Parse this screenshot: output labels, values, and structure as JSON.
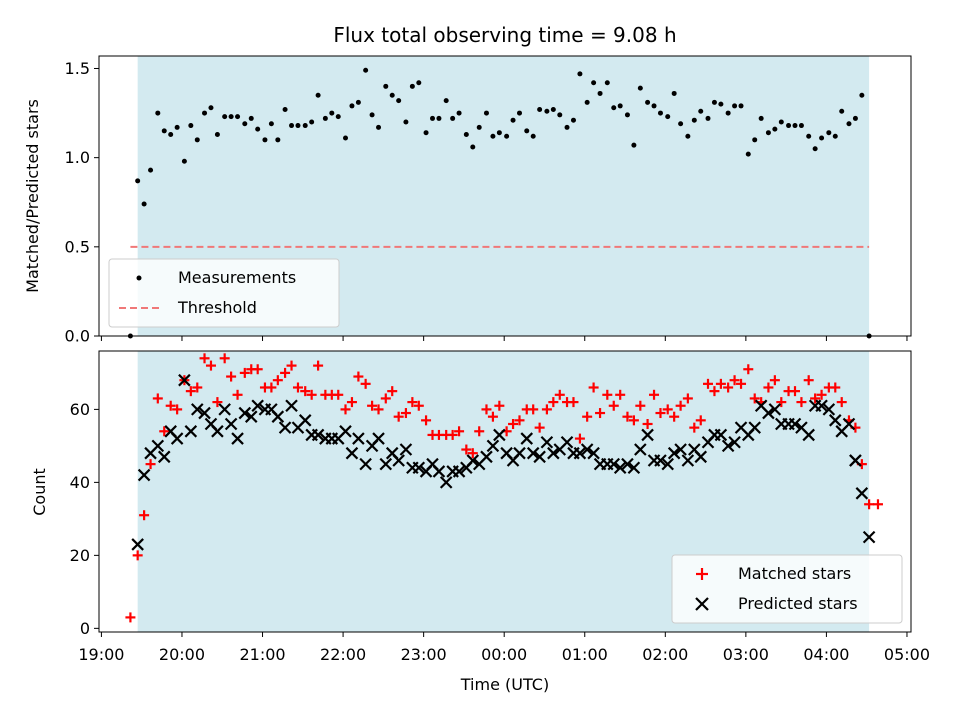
{
  "chart_data": {
    "title": "Flux total observing time = 9.08 h",
    "xlabel": "Time (UTC)",
    "x_tick_labels": [
      "19:00",
      "20:00",
      "21:00",
      "22:00",
      "23:00",
      "00:00",
      "01:00",
      "02:00",
      "03:00",
      "04:00",
      "05:00"
    ],
    "x_range_hours": [
      18.97,
      29.05
    ],
    "observing_window_hours": [
      19.45,
      28.53
    ],
    "shade_color": "#d3eaf0",
    "panels": [
      {
        "type": "scatter",
        "ylabel": "Matched/Predicted stars",
        "ylim": [
          0,
          1.57
        ],
        "y_ticks": [
          0.0,
          0.5,
          1.0,
          1.5
        ],
        "y_tick_labels": [
          "0.0",
          "0.5",
          "1.0",
          "1.5"
        ],
        "legend_position": "lower-left",
        "series": [
          {
            "name": "Measurements",
            "color": "#000000",
            "marker": "dot",
            "points": [
              [
                19.36,
                0.0
              ],
              [
                19.45,
                0.87
              ],
              [
                19.53,
                0.74
              ],
              [
                19.61,
                0.93
              ],
              [
                19.7,
                1.25
              ],
              [
                19.78,
                1.15
              ],
              [
                19.86,
                1.13
              ],
              [
                19.94,
                1.17
              ],
              [
                20.03,
                0.98
              ],
              [
                20.11,
                1.18
              ],
              [
                20.19,
                1.1
              ],
              [
                20.28,
                1.25
              ],
              [
                20.36,
                1.28
              ],
              [
                20.44,
                1.13
              ],
              [
                20.53,
                1.23
              ],
              [
                20.61,
                1.23
              ],
              [
                20.69,
                1.23
              ],
              [
                20.78,
                1.19
              ],
              [
                20.86,
                1.22
              ],
              [
                20.94,
                1.16
              ],
              [
                21.03,
                1.1
              ],
              [
                21.11,
                1.19
              ],
              [
                21.19,
                1.1
              ],
              [
                21.28,
                1.27
              ],
              [
                21.36,
                1.18
              ],
              [
                21.44,
                1.18
              ],
              [
                21.53,
                1.18
              ],
              [
                21.61,
                1.2
              ],
              [
                21.69,
                1.35
              ],
              [
                21.78,
                1.22
              ],
              [
                21.86,
                1.25
              ],
              [
                21.94,
                1.23
              ],
              [
                22.03,
                1.11
              ],
              [
                22.11,
                1.29
              ],
              [
                22.19,
                1.31
              ],
              [
                22.28,
                1.49
              ],
              [
                22.36,
                1.24
              ],
              [
                22.44,
                1.17
              ],
              [
                22.53,
                1.4
              ],
              [
                22.61,
                1.35
              ],
              [
                22.69,
                1.32
              ],
              [
                22.78,
                1.2
              ],
              [
                22.86,
                1.4
              ],
              [
                22.94,
                1.42
              ],
              [
                23.03,
                1.14
              ],
              [
                23.11,
                1.22
              ],
              [
                23.19,
                1.22
              ],
              [
                23.28,
                1.32
              ],
              [
                23.36,
                1.22
              ],
              [
                23.44,
                1.25
              ],
              [
                23.53,
                1.13
              ],
              [
                23.61,
                1.06
              ],
              [
                23.69,
                1.17
              ],
              [
                23.78,
                1.25
              ],
              [
                23.86,
                1.12
              ],
              [
                23.94,
                1.14
              ],
              [
                24.03,
                1.12
              ],
              [
                24.11,
                1.21
              ],
              [
                24.19,
                1.25
              ],
              [
                24.28,
                1.15
              ],
              [
                24.36,
                1.12
              ],
              [
                24.44,
                1.27
              ],
              [
                24.53,
                1.26
              ],
              [
                24.61,
                1.27
              ],
              [
                24.69,
                1.24
              ],
              [
                24.78,
                1.17
              ],
              [
                24.86,
                1.21
              ],
              [
                24.94,
                1.47
              ],
              [
                25.03,
                1.31
              ],
              [
                25.11,
                1.42
              ],
              [
                25.19,
                1.36
              ],
              [
                25.28,
                1.42
              ],
              [
                25.36,
                1.28
              ],
              [
                25.44,
                1.29
              ],
              [
                25.53,
                1.24
              ],
              [
                25.61,
                1.07
              ],
              [
                25.69,
                1.39
              ],
              [
                25.78,
                1.31
              ],
              [
                25.86,
                1.29
              ],
              [
                25.94,
                1.25
              ],
              [
                26.03,
                1.23
              ],
              [
                26.11,
                1.36
              ],
              [
                26.19,
                1.19
              ],
              [
                26.28,
                1.12
              ],
              [
                26.36,
                1.21
              ],
              [
                26.44,
                1.26
              ],
              [
                26.53,
                1.22
              ],
              [
                26.61,
                1.31
              ],
              [
                26.69,
                1.3
              ],
              [
                26.78,
                1.25
              ],
              [
                26.86,
                1.29
              ],
              [
                26.94,
                1.29
              ],
              [
                27.03,
                1.02
              ],
              [
                27.11,
                1.1
              ],
              [
                27.19,
                1.22
              ],
              [
                27.28,
                1.14
              ],
              [
                27.36,
                1.16
              ],
              [
                27.44,
                1.2
              ],
              [
                27.53,
                1.18
              ],
              [
                27.61,
                1.18
              ],
              [
                27.69,
                1.18
              ],
              [
                27.78,
                1.12
              ],
              [
                27.86,
                1.05
              ],
              [
                27.94,
                1.11
              ],
              [
                28.03,
                1.14
              ],
              [
                28.11,
                1.12
              ],
              [
                28.19,
                1.26
              ],
              [
                28.28,
                1.19
              ],
              [
                28.36,
                1.22
              ],
              [
                28.44,
                1.35
              ],
              [
                28.53,
                0.0
              ]
            ]
          },
          {
            "name": "Threshold",
            "color": "#f07878",
            "style": "dashed",
            "x": [
              19.36,
              28.53
            ],
            "value": 0.5
          }
        ]
      },
      {
        "type": "scatter",
        "ylabel": "Count",
        "ylim": [
          -1,
          76
        ],
        "y_ticks": [
          0,
          20,
          40,
          60
        ],
        "y_tick_labels": [
          "0",
          "20",
          "40",
          "60"
        ],
        "legend_position": "lower-right",
        "x": [
          19.36,
          19.45,
          19.53,
          19.61,
          19.7,
          19.78,
          19.86,
          19.94,
          20.03,
          20.11,
          20.19,
          20.28,
          20.36,
          20.44,
          20.53,
          20.61,
          20.69,
          20.78,
          20.86,
          20.94,
          21.03,
          21.11,
          21.19,
          21.28,
          21.36,
          21.44,
          21.53,
          21.61,
          21.69,
          21.78,
          21.86,
          21.94,
          22.03,
          22.11,
          22.19,
          22.28,
          22.36,
          22.44,
          22.53,
          22.61,
          22.69,
          22.78,
          22.86,
          22.94,
          23.03,
          23.11,
          23.19,
          23.28,
          23.36,
          23.44,
          23.53,
          23.61,
          23.69,
          23.78,
          23.86,
          23.94,
          24.03,
          24.11,
          24.19,
          24.28,
          24.36,
          24.44,
          24.53,
          24.61,
          24.69,
          24.78,
          24.86,
          24.94,
          25.03,
          25.11,
          25.19,
          25.28,
          25.36,
          25.44,
          25.53,
          25.61,
          25.69,
          25.78,
          25.86,
          25.94,
          26.03,
          26.11,
          26.19,
          26.28,
          26.36,
          26.44,
          26.53,
          26.61,
          26.69,
          26.78,
          26.86,
          26.94,
          27.03,
          27.11,
          27.19,
          27.28,
          27.36,
          27.44,
          27.53,
          27.61,
          27.69,
          27.78,
          27.86,
          27.94,
          28.03,
          28.11,
          28.19,
          28.28,
          28.36,
          28.44,
          28.53
        ],
        "series": [
          {
            "name": "Matched stars",
            "color": "#ff0000",
            "marker": "plus",
            "values": [
              3,
              20,
              31,
              45,
              63,
              54,
              61,
              60,
              68,
              65,
              66,
              74,
              72,
              62,
              74,
              69,
              64,
              70,
              71,
              71,
              66,
              66,
              68,
              70,
              72,
              66,
              65,
              64,
              72,
              64,
              64,
              64,
              60,
              62,
              69,
              67,
              61,
              60,
              63,
              65,
              58,
              59,
              62,
              61,
              57,
              53,
              53,
              53,
              53,
              54,
              49,
              48,
              54,
              60,
              58,
              61,
              54,
              56,
              57,
              60,
              60,
              55,
              60,
              62,
              64,
              62,
              62,
              52,
              58,
              66,
              59,
              64,
              61,
              64,
              58,
              57,
              61,
              56,
              64,
              59,
              60,
              58,
              61,
              63,
              55,
              57,
              67,
              65,
              67,
              66,
              68,
              67,
              71,
              63,
              62,
              66,
              68,
              62,
              65,
              65,
              62,
              68,
              63,
              64,
              66,
              66,
              62,
              57,
              55,
              45,
              34
            ],
            "extra_points": [
              [
                28.64,
                34
              ]
            ]
          },
          {
            "name": "Predicted stars",
            "color": "#000000",
            "marker": "cross",
            "values": [
              null,
              23,
              42,
              48,
              50,
              47,
              54,
              52,
              68,
              54,
              60,
              59,
              56,
              54,
              60,
              56,
              52,
              59,
              58,
              61,
              60,
              60,
              58,
              55,
              61,
              55,
              57,
              53,
              53,
              52,
              52,
              52,
              54,
              48,
              52,
              45,
              50,
              52,
              45,
              48,
              46,
              49,
              44,
              44,
              43,
              45,
              43,
              40,
              43,
              43,
              44,
              46,
              45,
              47,
              50,
              53,
              48,
              46,
              48,
              52,
              48,
              47,
              51,
              48,
              49,
              51,
              48,
              48,
              49,
              48,
              45,
              45,
              45,
              44,
              45,
              44,
              49,
              53,
              46,
              46,
              45,
              48,
              49,
              46,
              49,
              47,
              51,
              53,
              53,
              50,
              51,
              55,
              53,
              55,
              61,
              59,
              60,
              56,
              56,
              56,
              55,
              53,
              61,
              61,
              60,
              57,
              54,
              56,
              46,
              37,
              25
            ],
            "extra_points": [
              [
                28.36,
                46
              ]
            ]
          }
        ]
      }
    ],
    "legend_top": [
      "Measurements",
      "Threshold"
    ],
    "legend_bottom": [
      "Matched stars",
      "Predicted stars"
    ]
  }
}
